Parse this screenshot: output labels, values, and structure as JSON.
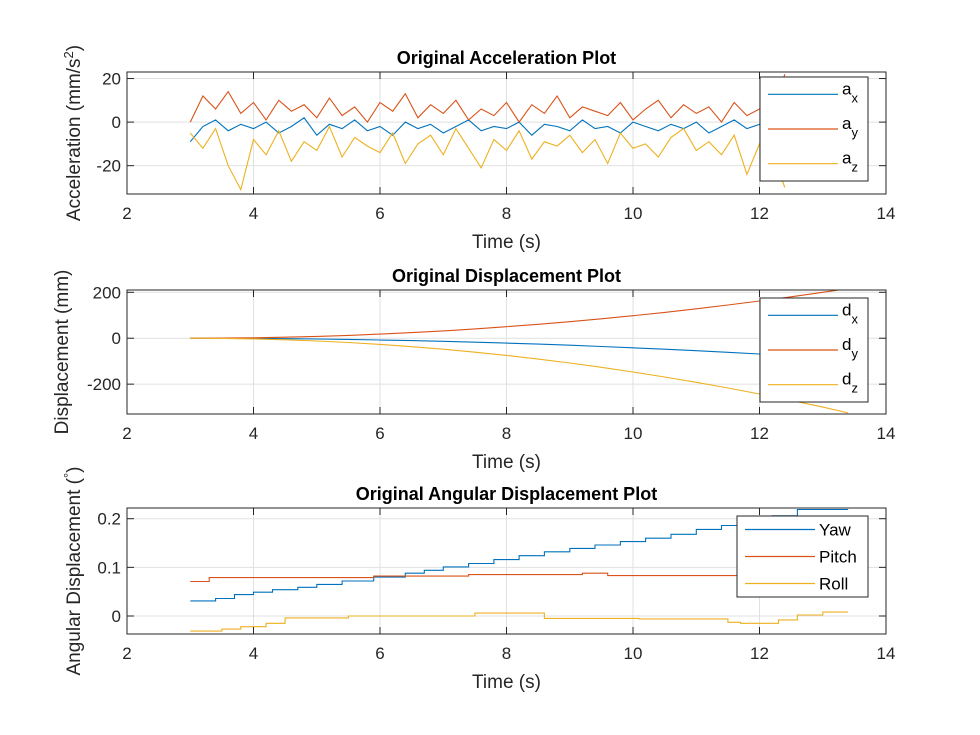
{
  "colors": {
    "blue": "#0072BD",
    "orange": "#D95319",
    "yellow": "#EDB120",
    "grid": "#e1e1e1",
    "axis": "#262626"
  },
  "chart_data": [
    {
      "type": "line",
      "title": "Original Acceleration Plot",
      "xlabel": "Time (s)",
      "ylabel_parts": [
        "Acceleration (mm/s",
        "2",
        ")"
      ],
      "xlim": [
        2,
        14
      ],
      "ylim": [
        -33,
        23
      ],
      "xticks": [
        2,
        4,
        6,
        8,
        10,
        12,
        14
      ],
      "yticks": [
        -20,
        0,
        20
      ],
      "grid": true,
      "legend_position": "top-right",
      "series": [
        {
          "legend_base": "a",
          "legend_sub": "x",
          "color": "blue",
          "x": [
            3.0,
            3.2,
            3.4,
            3.6,
            3.8,
            4.0,
            4.2,
            4.4,
            4.6,
            4.8,
            5.0,
            5.2,
            5.4,
            5.6,
            5.8,
            6.0,
            6.2,
            6.4,
            6.6,
            6.8,
            7.0,
            7.2,
            7.4,
            7.6,
            7.8,
            8.0,
            8.2,
            8.4,
            8.6,
            8.8,
            9.0,
            9.2,
            9.4,
            9.6,
            9.8,
            10.0,
            10.2,
            10.4,
            10.6,
            10.8,
            11.0,
            11.2,
            11.4,
            11.6,
            11.8,
            12.0,
            12.2,
            12.4
          ],
          "y": [
            -9,
            -2,
            1,
            -4,
            -1,
            -3,
            0,
            -5,
            -2,
            2,
            -6,
            -1,
            -3,
            1,
            -4,
            -2,
            -6,
            0,
            -3,
            -1,
            -5,
            -2,
            1,
            -4,
            -2,
            -3,
            0,
            -6,
            -1,
            -2,
            -4,
            1,
            -3,
            -2,
            -5,
            0,
            -2,
            -4,
            -1,
            -3,
            0,
            -5,
            -2,
            1,
            -3,
            -1,
            -4,
            -2
          ]
        },
        {
          "legend_base": "a",
          "legend_sub": "y",
          "color": "orange",
          "x": [
            3.0,
            3.2,
            3.4,
            3.6,
            3.8,
            4.0,
            4.2,
            4.4,
            4.6,
            4.8,
            5.0,
            5.2,
            5.4,
            5.6,
            5.8,
            6.0,
            6.2,
            6.4,
            6.6,
            6.8,
            7.0,
            7.2,
            7.4,
            7.6,
            7.8,
            8.0,
            8.2,
            8.4,
            8.6,
            8.8,
            9.0,
            9.2,
            9.4,
            9.6,
            9.8,
            10.0,
            10.2,
            10.4,
            10.6,
            10.8,
            11.0,
            11.2,
            11.4,
            11.6,
            11.8,
            12.0,
            12.2,
            12.4
          ],
          "y": [
            0,
            12,
            6,
            14,
            4,
            9,
            1,
            10,
            5,
            8,
            2,
            11,
            3,
            7,
            0,
            9,
            5,
            13,
            2,
            8,
            4,
            10,
            1,
            6,
            3,
            9,
            0,
            8,
            4,
            12,
            2,
            7,
            5,
            3,
            9,
            1,
            6,
            10,
            2,
            8,
            4,
            7,
            0,
            9,
            3,
            6,
            2,
            22
          ]
        },
        {
          "legend_base": "a",
          "legend_sub": "z",
          "color": "yellow",
          "x": [
            3.0,
            3.2,
            3.4,
            3.6,
            3.8,
            4.0,
            4.2,
            4.4,
            4.6,
            4.8,
            5.0,
            5.2,
            5.4,
            5.6,
            5.8,
            6.0,
            6.2,
            6.4,
            6.6,
            6.8,
            7.0,
            7.2,
            7.4,
            7.6,
            7.8,
            8.0,
            8.2,
            8.4,
            8.6,
            8.8,
            9.0,
            9.2,
            9.4,
            9.6,
            9.8,
            10.0,
            10.2,
            10.4,
            10.6,
            10.8,
            11.0,
            11.2,
            11.4,
            11.6,
            11.8,
            12.0,
            12.2,
            12.4
          ],
          "y": [
            -5,
            -12,
            -3,
            -20,
            -31,
            -8,
            -15,
            -4,
            -18,
            -9,
            -13,
            -2,
            -16,
            -7,
            -11,
            -14,
            -5,
            -19,
            -10,
            -6,
            -15,
            -3,
            -12,
            -21,
            -8,
            -13,
            -4,
            -17,
            -9,
            -11,
            -6,
            -14,
            -8,
            -19,
            -5,
            -12,
            -10,
            -16,
            -7,
            -3,
            -13,
            -9,
            -15,
            -6,
            -24,
            -10,
            -14,
            -30
          ]
        }
      ]
    },
    {
      "type": "line",
      "title": "Original Displacement Plot",
      "xlabel": "Time (s)",
      "ylabel_parts": [
        "Displacement (mm)"
      ],
      "xlim": [
        2,
        14
      ],
      "ylim": [
        -330,
        210
      ],
      "xticks": [
        2,
        4,
        6,
        8,
        10,
        12,
        14
      ],
      "yticks": [
        -200,
        0,
        200
      ],
      "grid": true,
      "legend_position": "top-right",
      "series": [
        {
          "legend_base": "d",
          "legend_sub": "x",
          "color": "blue",
          "x": [
            3.0,
            3.5,
            4.0,
            4.5,
            5.0,
            5.5,
            6.0,
            6.5,
            7.0,
            7.5,
            8.0,
            8.5,
            9.0,
            9.5,
            10.0,
            10.5,
            11.0,
            11.5,
            12.0,
            12.4
          ],
          "y": [
            0,
            -0.2,
            -0.9,
            -1.9,
            -3.4,
            -5.3,
            -7.6,
            -10.4,
            -13.6,
            -17.2,
            -21.2,
            -25.7,
            -30.6,
            -35.9,
            -41.6,
            -47.8,
            -54.4,
            -61.4,
            -68.9,
            -75.2
          ]
        },
        {
          "legend_base": "d",
          "legend_sub": "y",
          "color": "orange",
          "x": [
            3.0,
            3.5,
            4.0,
            4.5,
            5.0,
            5.5,
            6.0,
            6.5,
            7.0,
            7.5,
            8.0,
            8.5,
            9.0,
            9.5,
            10.0,
            10.5,
            11.0,
            11.5,
            12.0,
            12.5,
            13.0,
            13.4
          ],
          "y": [
            0,
            0.5,
            2,
            4.5,
            8,
            12.5,
            18,
            24.5,
            32,
            40.5,
            50,
            60.5,
            72,
            84.5,
            98,
            112.5,
            128,
            144.5,
            162,
            180.5,
            200,
            216
          ]
        },
        {
          "legend_base": "d",
          "legend_sub": "z",
          "color": "yellow",
          "x": [
            3.0,
            3.5,
            4.0,
            4.5,
            5.0,
            5.5,
            6.0,
            6.5,
            7.0,
            7.5,
            8.0,
            8.5,
            9.0,
            9.5,
            10.0,
            10.5,
            11.0,
            11.5,
            12.0,
            12.5,
            13.0,
            13.4
          ],
          "y": [
            0,
            -0.8,
            -3,
            -6.8,
            -12,
            -18.8,
            -27,
            -36.8,
            -48,
            -60.8,
            -75,
            -90.8,
            -108,
            -126.8,
            -147,
            -168.8,
            -192,
            -216.8,
            -243,
            -270.8,
            -300,
            -325
          ]
        }
      ]
    },
    {
      "type": "line",
      "title": "Original Angular Displacement Plot",
      "xlabel": "Time (s)",
      "ylabel_parts": [
        "Angular Displacement (",
        "°",
        ")"
      ],
      "xlim": [
        2,
        14
      ],
      "ylim": [
        -0.037,
        0.222
      ],
      "xticks": [
        2,
        4,
        6,
        8,
        10,
        12,
        14
      ],
      "yticks": [
        0,
        0.1,
        0.2
      ],
      "grid": true,
      "legend_position": "top-right",
      "series": [
        {
          "legend_base": "Yaw",
          "legend_sub": "",
          "color": "blue",
          "x": [
            3.0,
            3.4,
            3.4,
            3.7,
            3.7,
            4.0,
            4.0,
            4.3,
            4.3,
            4.7,
            4.7,
            5.0,
            5.0,
            5.4,
            5.4,
            5.9,
            5.9,
            6.4,
            6.4,
            6.7,
            6.7,
            7.0,
            7.0,
            7.4,
            7.4,
            7.8,
            7.8,
            8.2,
            8.2,
            8.6,
            8.6,
            9.0,
            9.0,
            9.4,
            9.4,
            9.8,
            9.8,
            10.2,
            10.2,
            10.6,
            10.6,
            11.0,
            11.0,
            11.4,
            11.4,
            11.8,
            11.8,
            12.2,
            12.2,
            12.6,
            12.6,
            13.4
          ],
          "y": [
            0.031,
            0.031,
            0.036,
            0.036,
            0.044,
            0.044,
            0.049,
            0.049,
            0.054,
            0.054,
            0.059,
            0.059,
            0.065,
            0.065,
            0.072,
            0.072,
            0.08,
            0.08,
            0.088,
            0.088,
            0.094,
            0.094,
            0.101,
            0.101,
            0.108,
            0.108,
            0.116,
            0.116,
            0.124,
            0.124,
            0.132,
            0.132,
            0.139,
            0.139,
            0.146,
            0.146,
            0.153,
            0.153,
            0.16,
            0.16,
            0.168,
            0.168,
            0.178,
            0.178,
            0.186,
            0.186,
            0.194,
            0.194,
            0.206,
            0.206,
            0.219,
            0.219
          ]
        },
        {
          "legend_base": "Pitch",
          "legend_sub": "",
          "color": "orange",
          "x": [
            3.0,
            3.3,
            3.3,
            5.9,
            5.9,
            7.4,
            7.4,
            9.2,
            9.2,
            9.6,
            9.6,
            13.4
          ],
          "y": [
            0.071,
            0.071,
            0.079,
            0.079,
            0.082,
            0.082,
            0.085,
            0.085,
            0.088,
            0.088,
            0.083,
            0.083
          ]
        },
        {
          "legend_base": "Roll",
          "legend_sub": "",
          "color": "yellow",
          "x": [
            3.0,
            3.5,
            3.5,
            3.8,
            3.8,
            4.2,
            4.2,
            4.5,
            4.5,
            5.5,
            5.5,
            7.5,
            7.5,
            8.6,
            8.6,
            10.1,
            10.1,
            11.5,
            11.5,
            11.7,
            11.7,
            12.3,
            12.3,
            12.6,
            12.6,
            13.0,
            13.0,
            13.4
          ],
          "y": [
            -0.031,
            -0.031,
            -0.027,
            -0.027,
            -0.022,
            -0.022,
            -0.015,
            -0.015,
            -0.004,
            -0.004,
            0,
            0,
            0.006,
            0.006,
            -0.005,
            -0.005,
            -0.006,
            -0.006,
            -0.013,
            -0.013,
            -0.015,
            -0.015,
            -0.008,
            -0.008,
            0.002,
            0.002,
            0.008,
            0.008
          ]
        }
      ]
    }
  ]
}
